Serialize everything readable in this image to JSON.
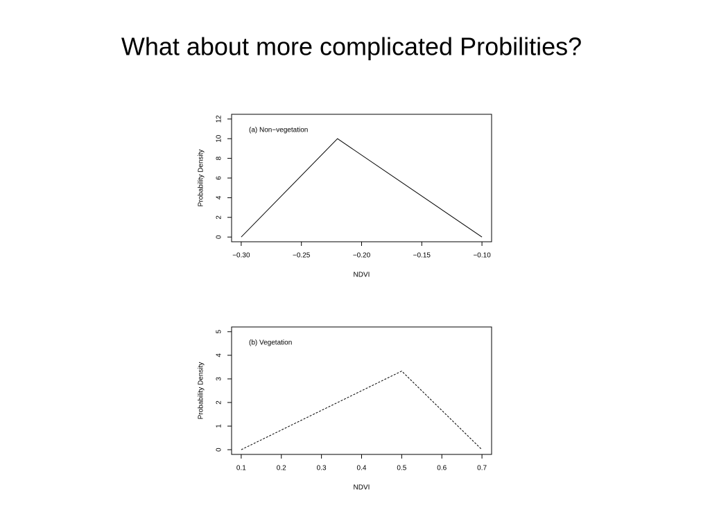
{
  "title": "What about more complicated Probilities?",
  "chart_data": [
    {
      "type": "line",
      "annotation": "(a) Non−vegetation",
      "xlabel": "NDVI",
      "ylabel": "Probability Density",
      "x": [
        -0.3,
        -0.22,
        -0.1
      ],
      "series": [
        {
          "color": "#000000",
          "line_style": "solid",
          "values": [
            0,
            10,
            0
          ]
        }
      ],
      "xlim": [
        -0.308,
        -0.092
      ],
      "xticks": [
        {
          "value": -0.3,
          "label": "−0.30"
        },
        {
          "value": -0.25,
          "label": "−0.25"
        },
        {
          "value": -0.2,
          "label": "−0.20"
        },
        {
          "value": -0.15,
          "label": "−0.15"
        },
        {
          "value": -0.1,
          "label": "−0.10"
        }
      ],
      "ylim": [
        -0.48,
        12.48
      ],
      "yticks": [
        0,
        2,
        4,
        6,
        8,
        10,
        12
      ]
    },
    {
      "type": "line",
      "annotation": "(b) Vegetation",
      "xlabel": "NDVI",
      "ylabel": "Probability Density",
      "x": [
        0.1,
        0.5,
        0.7
      ],
      "series": [
        {
          "color": "#000000",
          "line_style": "dashed",
          "values": [
            0,
            3.33,
            0
          ]
        }
      ],
      "xlim": [
        0.076,
        0.724
      ],
      "xticks": [
        0.1,
        0.2,
        0.3,
        0.4,
        0.5,
        0.6,
        0.7
      ],
      "ylim": [
        -0.2,
        5.2
      ],
      "yticks": [
        0,
        1,
        2,
        3,
        4,
        5
      ]
    }
  ]
}
